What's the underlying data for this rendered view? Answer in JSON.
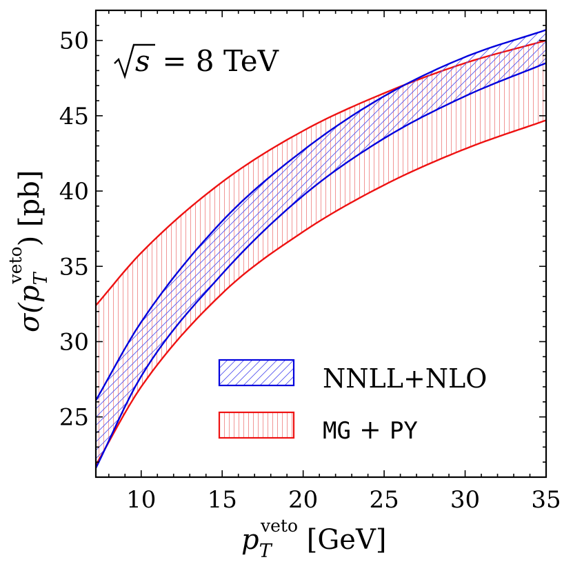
{
  "chart_data": {
    "type": "area",
    "title": "",
    "annotation": {
      "sqrt_symbol": "√",
      "variable": "s",
      "text": " = 8 TeV"
    },
    "xlabel": {
      "main": "p",
      "sub": "T",
      "sup": "veto",
      "unit": " [GeV]"
    },
    "ylabel": {
      "prefix": "σ(",
      "main": "p",
      "sub": "T",
      "sup": "veto",
      "suffix": ") [pb]"
    },
    "xlim": [
      7.2,
      35
    ],
    "ylim": [
      21,
      52
    ],
    "x_ticks": [
      10,
      15,
      20,
      25,
      30,
      35
    ],
    "y_ticks": [
      25,
      30,
      35,
      40,
      45,
      50
    ],
    "x_minor_step": 1,
    "y_minor_step": 1,
    "series": [
      {
        "name": "NNLL+NLO",
        "color": "#0000dd",
        "hatch": "diagonal",
        "x": [
          7.2,
          10,
          15,
          20,
          25,
          30,
          35
        ],
        "upper": [
          26.1,
          31.3,
          38.0,
          42.7,
          46.3,
          48.9,
          50.7
        ],
        "lower": [
          21.6,
          27.7,
          34.5,
          39.7,
          43.5,
          46.3,
          48.5
        ]
      },
      {
        "name": "MG + PY",
        "name_parts": [
          "MG",
          " + ",
          "PY"
        ],
        "color": "#ee1111",
        "hatch": "vertical",
        "x": [
          7.2,
          10,
          15,
          20,
          25,
          30,
          35
        ],
        "upper": [
          32.4,
          35.9,
          40.6,
          44.0,
          46.5,
          48.5,
          50.0
        ],
        "lower": [
          21.8,
          27.0,
          33.2,
          37.3,
          40.4,
          42.8,
          44.7
        ]
      }
    ],
    "legend_position": "lower-right"
  }
}
